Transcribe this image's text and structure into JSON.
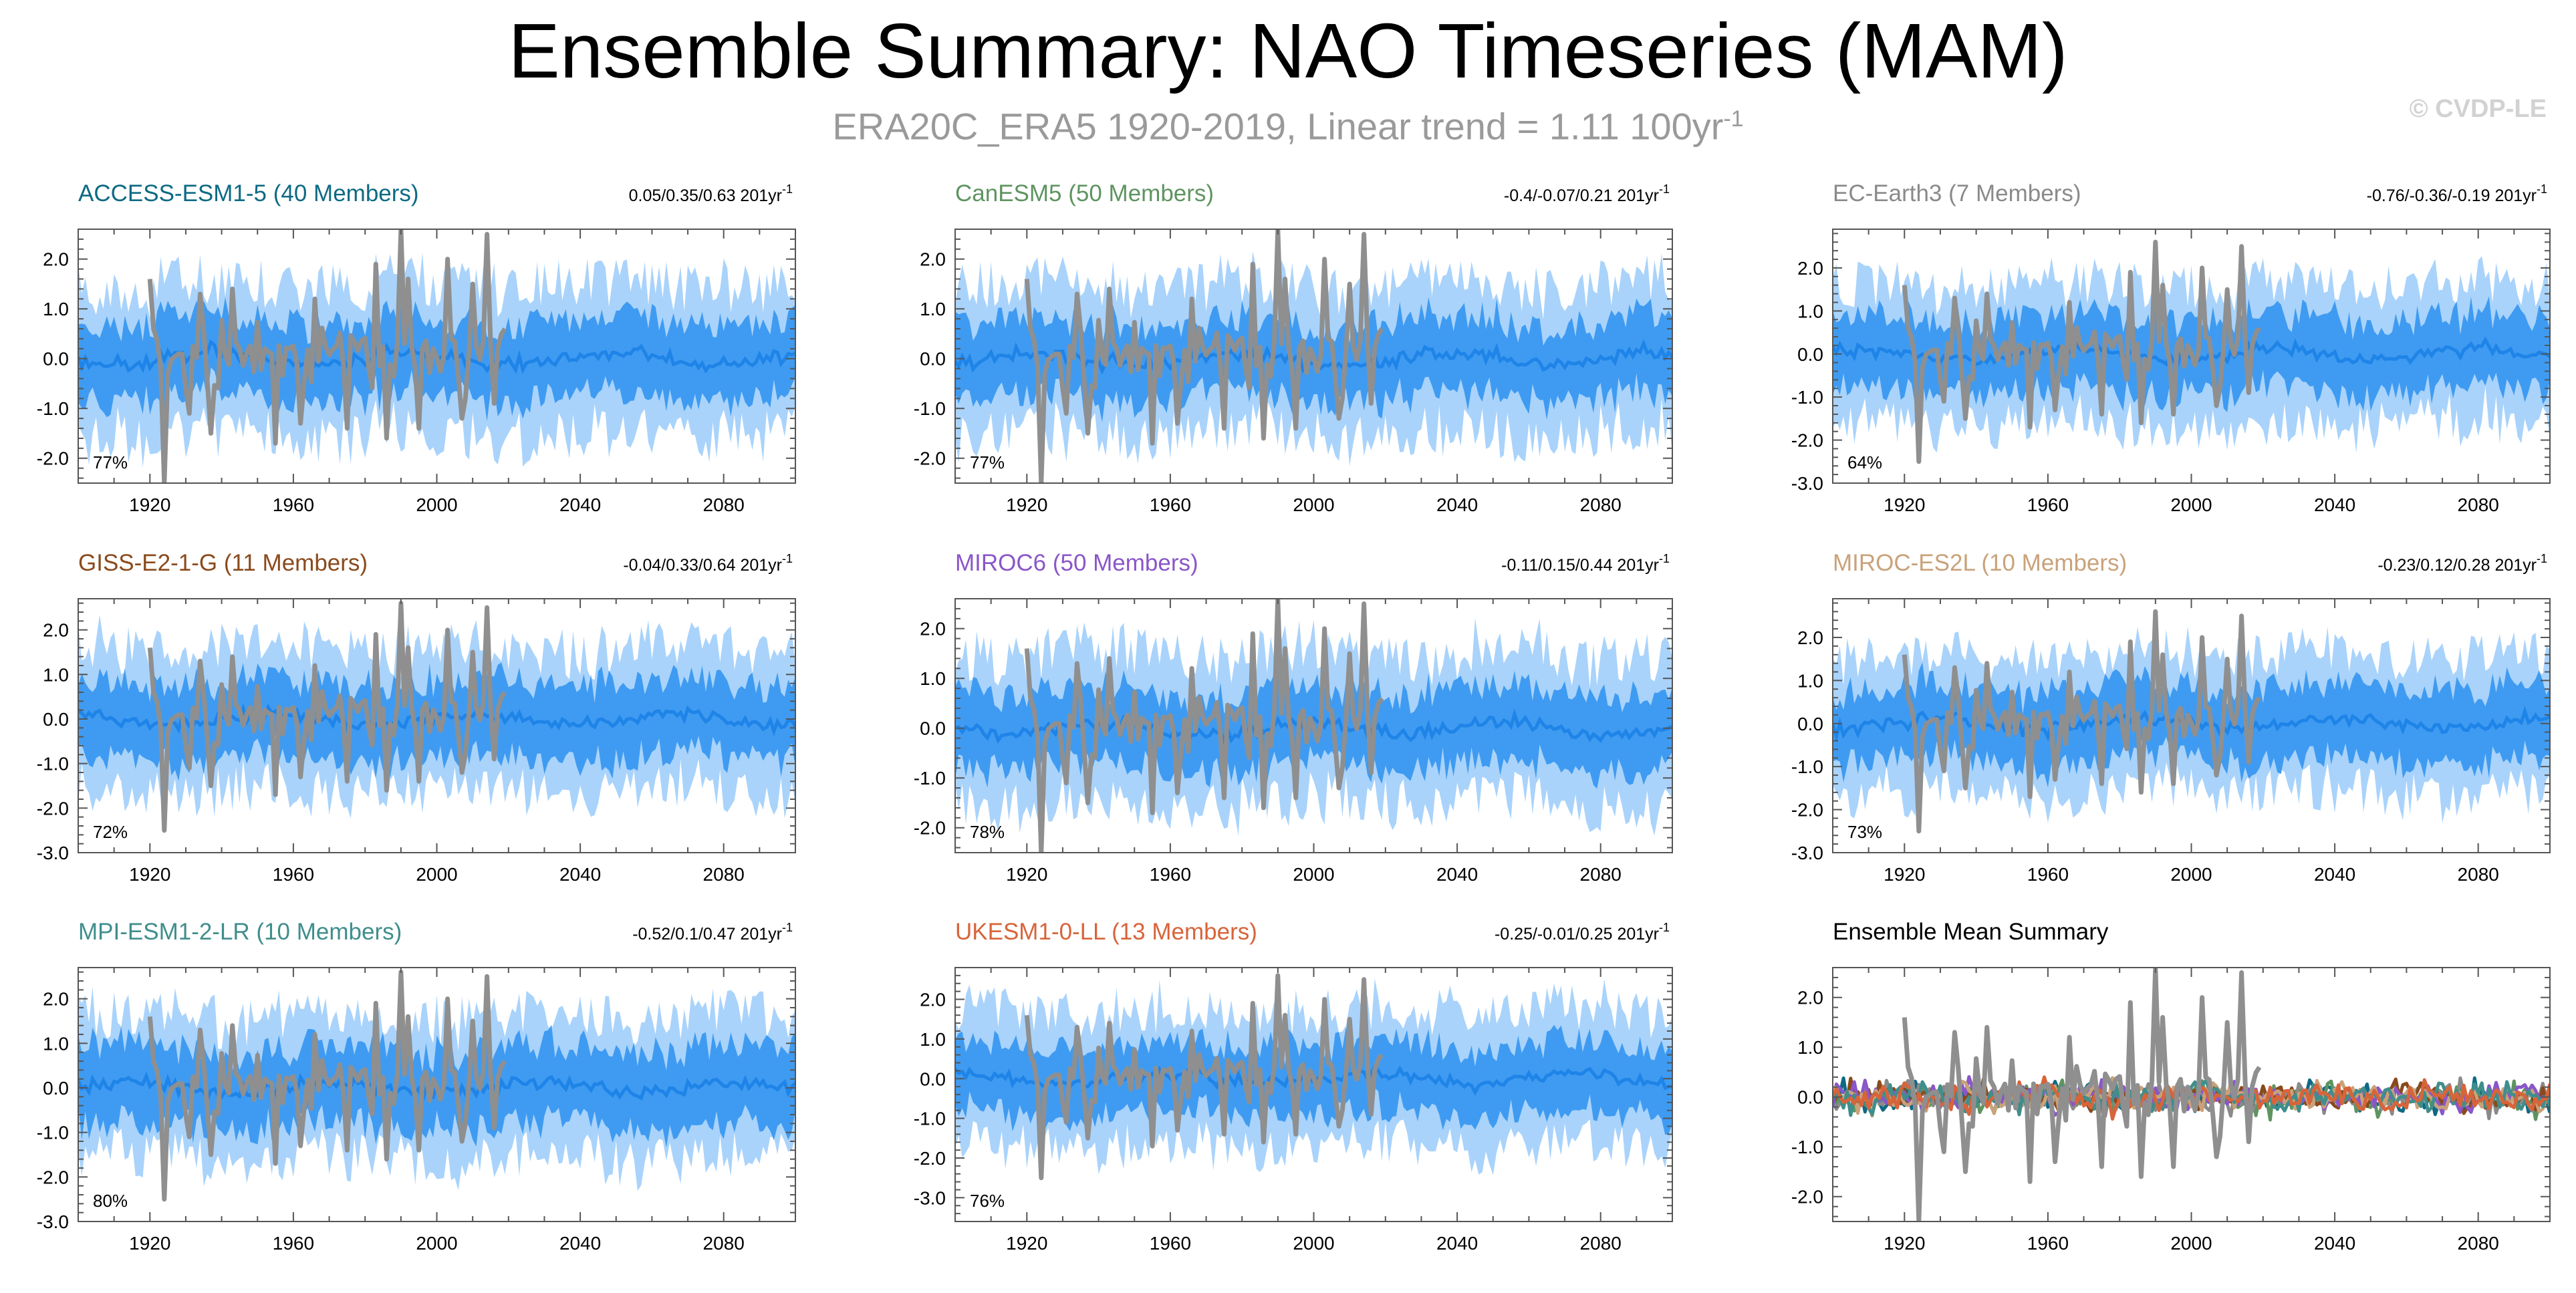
{
  "page": {
    "title": "Ensemble Summary: NAO Timeseries (MAM)",
    "subtitle_main": "ERA20C_ERA5 1920-2019, Linear trend = 1.11 100yr",
    "subtitle_sup": "-1",
    "copyright": "© CVDP-LE"
  },
  "colors": {
    "observed": "#8f8f8f",
    "band_outer": "#a9d3fb",
    "band_inner": "#3f9bf1",
    "ensemble_mean": "#1f84e8"
  },
  "chart_data": [
    {
      "type": "area",
      "title": "ACCESS-ESM1-5 (40 Members)",
      "title_color": "#0e6a84",
      "trend": "0.05/0.35/0.63 201yr",
      "trend_sup": "-1",
      "percent": "77%",
      "xlim": [
        1900,
        2100
      ],
      "xticks": [
        1920,
        1960,
        2000,
        2040,
        2080
      ],
      "ylim": [
        -2.5,
        2.6
      ],
      "yticks": [
        -2.0,
        -1.0,
        0.0,
        1.0,
        2.0
      ],
      "ytick_labels": [
        "-2.0",
        "-1.0",
        "0.0",
        "1.0",
        "2.0"
      ],
      "series": [
        {
          "role": "observed",
          "start_year": 1920,
          "end_year": 2019
        },
        {
          "role": "ensemble",
          "start_year": 1900,
          "end_year": 2100,
          "inner_halfwidth": 0.75,
          "outer_halfwidth": 1.5
        }
      ]
    },
    {
      "type": "area",
      "title": "CanESM5 (50 Members)",
      "title_color": "#5e9460",
      "trend": "-0.4/-0.07/0.21 201yr",
      "trend_sup": "-1",
      "percent": "77%",
      "xlim": [
        1900,
        2100
      ],
      "xticks": [
        1920,
        1960,
        2000,
        2040,
        2080
      ],
      "ylim": [
        -2.5,
        2.6
      ],
      "yticks": [
        -2.0,
        -1.0,
        0.0,
        1.0,
        2.0
      ],
      "ytick_labels": [
        "-2.0",
        "-1.0",
        "0.0",
        "1.0",
        "2.0"
      ],
      "series": [
        {
          "role": "observed",
          "start_year": 1920,
          "end_year": 2019
        },
        {
          "role": "ensemble",
          "start_year": 1900,
          "end_year": 2100,
          "inner_halfwidth": 0.75,
          "outer_halfwidth": 1.5
        }
      ]
    },
    {
      "type": "area",
      "title": "EC-Earth3 (7 Members)",
      "title_color": "#8a8a8a",
      "trend": "-0.76/-0.36/-0.19 201yr",
      "trend_sup": "-1",
      "percent": "64%",
      "xlim": [
        1900,
        2100
      ],
      "xticks": [
        1920,
        1960,
        2000,
        2040,
        2080
      ],
      "ylim": [
        -3.0,
        2.9
      ],
      "yticks": [
        -3.0,
        -2.0,
        -1.0,
        0.0,
        1.0,
        2.0
      ],
      "ytick_labels": [
        "-3.0",
        "-2.0",
        "-1.0",
        "0.0",
        "1.0",
        "2.0"
      ],
      "series": [
        {
          "role": "observed",
          "start_year": 1920,
          "end_year": 2019
        },
        {
          "role": "ensemble",
          "start_year": 1900,
          "end_year": 2100,
          "inner_halfwidth": 0.85,
          "outer_halfwidth": 1.6
        }
      ]
    },
    {
      "type": "area",
      "title": "GISS-E2-1-G (11 Members)",
      "title_color": "#8a4a1c",
      "trend": "-0.04/0.33/0.64 201yr",
      "trend_sup": "-1",
      "percent": "72%",
      "xlim": [
        1900,
        2100
      ],
      "xticks": [
        1920,
        1960,
        2000,
        2040,
        2080
      ],
      "ylim": [
        -3.0,
        2.7
      ],
      "yticks": [
        -3.0,
        -2.0,
        -1.0,
        0.0,
        1.0,
        2.0
      ],
      "ytick_labels": [
        "-3.0",
        "-2.0",
        "-1.0",
        "0.0",
        "1.0",
        "2.0"
      ],
      "series": [
        {
          "role": "observed",
          "start_year": 1920,
          "end_year": 2019
        },
        {
          "role": "ensemble",
          "start_year": 1900,
          "end_year": 2100,
          "inner_halfwidth": 0.85,
          "outer_halfwidth": 1.6
        }
      ]
    },
    {
      "type": "area",
      "title": "MIROC6 (50 Members)",
      "title_color": "#8a56c9",
      "trend": "-0.11/0.15/0.44 201yr",
      "trend_sup": "-1",
      "percent": "78%",
      "xlim": [
        1900,
        2100
      ],
      "xticks": [
        1920,
        1960,
        2000,
        2040,
        2080
      ],
      "ylim": [
        -2.5,
        2.6
      ],
      "yticks": [
        -2.0,
        -1.0,
        0.0,
        1.0,
        2.0
      ],
      "ytick_labels": [
        "-2.0",
        "-1.0",
        "0.0",
        "1.0",
        "2.0"
      ],
      "series": [
        {
          "role": "observed",
          "start_year": 1920,
          "end_year": 2019
        },
        {
          "role": "ensemble",
          "start_year": 1900,
          "end_year": 2100,
          "inner_halfwidth": 0.75,
          "outer_halfwidth": 1.5
        }
      ]
    },
    {
      "type": "area",
      "title": "MIROC-ES2L (10 Members)",
      "title_color": "#c9a27a",
      "trend": "-0.23/0.12/0.28 201yr",
      "trend_sup": "-1",
      "percent": "73%",
      "xlim": [
        1900,
        2100
      ],
      "xticks": [
        1920,
        1960,
        2000,
        2040,
        2080
      ],
      "ylim": [
        -3.0,
        2.9
      ],
      "yticks": [
        -3.0,
        -2.0,
        -1.0,
        0.0,
        1.0,
        2.0
      ],
      "ytick_labels": [
        "-3.0",
        "-2.0",
        "-1.0",
        "0.0",
        "1.0",
        "2.0"
      ],
      "series": [
        {
          "role": "observed",
          "start_year": 1920,
          "end_year": 2019
        },
        {
          "role": "ensemble",
          "start_year": 1900,
          "end_year": 2100,
          "inner_halfwidth": 0.85,
          "outer_halfwidth": 1.6
        }
      ]
    },
    {
      "type": "area",
      "title": "MPI-ESM1-2-LR (10 Members)",
      "title_color": "#3f8e8c",
      "trend": "-0.52/0.1/0.47 201yr",
      "trend_sup": "-1",
      "percent": "80%",
      "xlim": [
        1900,
        2100
      ],
      "xticks": [
        1920,
        1960,
        2000,
        2040,
        2080
      ],
      "ylim": [
        -3.0,
        2.7
      ],
      "yticks": [
        -3.0,
        -2.0,
        -1.0,
        0.0,
        1.0,
        2.0
      ],
      "ytick_labels": [
        "-3.0",
        "-2.0",
        "-1.0",
        "0.0",
        "1.0",
        "2.0"
      ],
      "series": [
        {
          "role": "observed",
          "start_year": 1920,
          "end_year": 2019
        },
        {
          "role": "ensemble",
          "start_year": 1900,
          "end_year": 2100,
          "inner_halfwidth": 0.85,
          "outer_halfwidth": 1.6
        }
      ]
    },
    {
      "type": "area",
      "title": "UKESM1-0-LL (13 Members)",
      "title_color": "#d8643a",
      "trend": "-0.25/-0.01/0.25 201yr",
      "trend_sup": "-1",
      "percent": "76%",
      "xlim": [
        1900,
        2100
      ],
      "xticks": [
        1920,
        1960,
        2000,
        2040,
        2080
      ],
      "ylim": [
        -3.6,
        2.8
      ],
      "yticks": [
        -3.0,
        -2.0,
        -1.0,
        0.0,
        1.0,
        2.0
      ],
      "ytick_labels": [
        "-3.0",
        "-2.0",
        "-1.0",
        "0.0",
        "1.0",
        "2.0"
      ],
      "series": [
        {
          "role": "observed",
          "start_year": 1920,
          "end_year": 2019
        },
        {
          "role": "ensemble",
          "start_year": 1900,
          "end_year": 2100,
          "inner_halfwidth": 0.85,
          "outer_halfwidth": 1.7
        }
      ]
    },
    {
      "type": "line",
      "title": "Ensemble Mean Summary",
      "title_color": "#000000",
      "xlim": [
        1900,
        2100
      ],
      "xticks": [
        1920,
        1960,
        2000,
        2040,
        2080
      ],
      "ylim": [
        -2.5,
        2.6
      ],
      "yticks": [
        -2.0,
        -1.0,
        0.0,
        1.0,
        2.0
      ],
      "ytick_labels": [
        "-2.0",
        "-1.0",
        "0.0",
        "1.0",
        "2.0"
      ],
      "series": [
        {
          "role": "mean",
          "color": "#0e6a84"
        },
        {
          "role": "mean",
          "color": "#5e9460"
        },
        {
          "role": "mean",
          "color": "#8a8a8a"
        },
        {
          "role": "mean",
          "color": "#8a4a1c"
        },
        {
          "role": "mean",
          "color": "#8a56c9"
        },
        {
          "role": "mean",
          "color": "#c9a27a"
        },
        {
          "role": "mean",
          "color": "#3f8e8c"
        },
        {
          "role": "mean",
          "color": "#d8643a"
        },
        {
          "role": "observed",
          "start_year": 1920,
          "end_year": 2019
        }
      ]
    }
  ]
}
